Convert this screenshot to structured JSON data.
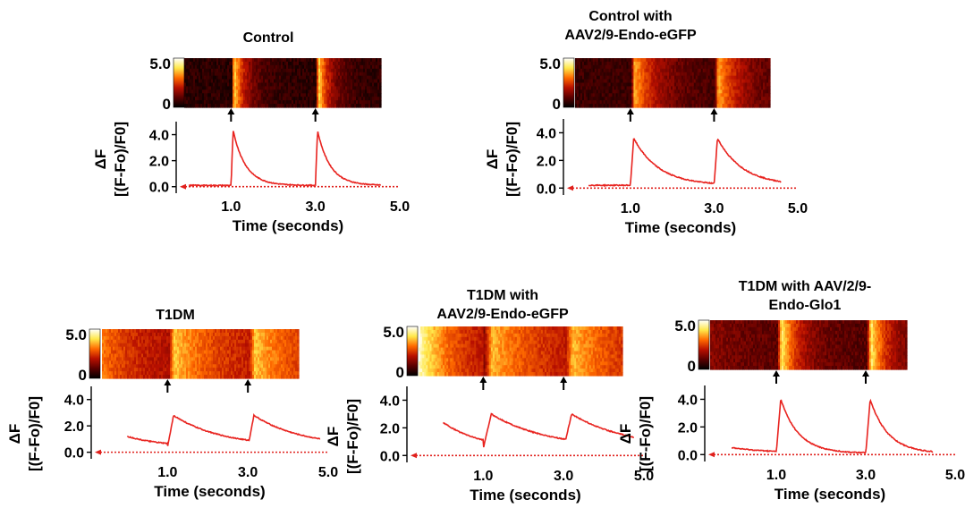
{
  "colors": {
    "trace": "#e8231f",
    "baseline": "#e0201c",
    "axis": "#000000"
  },
  "heatmap_colorscale": [
    "#000000",
    "#5a0000",
    "#b81000",
    "#ff6a00",
    "#ffe84a",
    "#ffffff"
  ],
  "chart_data": [
    {
      "id": "control",
      "type": "line",
      "title_lines": [
        "Control"
      ],
      "xlabel": "Time (seconds)",
      "ylabel_line1": "ΔF",
      "ylabel_line2": "[(F-Fo)/F0]",
      "xlim": [
        -0.3,
        5.0
      ],
      "ylim": [
        -0.5,
        5.0
      ],
      "xticks": [
        1.0,
        3.0,
        5.0
      ],
      "xtick_labels": [
        "1.0",
        "3.0",
        "5.0"
      ],
      "yticks": [
        0,
        2,
        4
      ],
      "ytick_labels": [
        "0.0",
        "2.0",
        "4.0"
      ],
      "colorbar_labels": [
        "5.0",
        "0"
      ],
      "stimulus_times": [
        1.0,
        3.0
      ],
      "heatmap_background": 0.15,
      "baseline": 0.0,
      "transient": {
        "rest": 0.1,
        "peak": 4.3,
        "rise": 0.05,
        "decay_tau": 0.3,
        "start": 0.0,
        "end": 4.55
      }
    },
    {
      "id": "control-eGFP",
      "type": "line",
      "title_lines": [
        "Control with",
        "AAV2/9-Endo-eGFP"
      ],
      "xlabel": "Time (seconds)",
      "ylabel_line1": "ΔF",
      "ylabel_line2": "[(F-Fo)/F0]",
      "xlim": [
        -0.6,
        5.0
      ],
      "ylim": [
        -0.5,
        5.0
      ],
      "xticks": [
        1.0,
        3.0,
        5.0
      ],
      "xtick_labels": [
        "1.0",
        "3.0",
        "5.0"
      ],
      "yticks": [
        0,
        2,
        4
      ],
      "ytick_labels": [
        "0.0",
        "2.0",
        "4.0"
      ],
      "colorbar_labels": [
        "5.0",
        "0"
      ],
      "stimulus_times": [
        1.0,
        3.0
      ],
      "heatmap_background": 0.18,
      "baseline": 0.0,
      "transient": {
        "rest": 0.2,
        "peak": 3.6,
        "rise": 0.08,
        "decay_tau": 0.6,
        "start": 0.0,
        "end": 4.6
      }
    },
    {
      "id": "t1dm",
      "type": "line",
      "title_lines": [
        "T1DM"
      ],
      "xlabel": "Time (seconds)",
      "ylabel_line1": "ΔF",
      "ylabel_line2": "[(F-Fo)/F0]",
      "xlim": [
        -0.9,
        5.0
      ],
      "ylim": [
        -0.5,
        5.0
      ],
      "xticks": [
        1.0,
        3.0,
        5.0
      ],
      "xtick_labels": [
        "1.0",
        "3.0",
        "5.0"
      ],
      "yticks": [
        0,
        2,
        4
      ],
      "ytick_labels": [
        "0.0",
        "2.0",
        "4.0"
      ],
      "colorbar_labels": [
        "5.0",
        "0"
      ],
      "stimulus_times": [
        1.0,
        3.0
      ],
      "heatmap_background": 0.5,
      "baseline": 0.0,
      "transient": {
        "rest": 0.4,
        "peak": 2.8,
        "rise": 0.15,
        "decay_tau": 1.2,
        "start": 0.0,
        "end": 4.8,
        "start_value": 1.2
      }
    },
    {
      "id": "t1dm-eGFP",
      "type": "line",
      "title_lines": [
        "T1DM with",
        "AAV2/9-Endo-eGFP"
      ],
      "xlabel": "Time (seconds)",
      "ylabel_line1": "ΔF",
      "ylabel_line2": "[(F-Fo)/F0]",
      "xlim": [
        -0.9,
        5.0
      ],
      "ylim": [
        -0.5,
        5.0
      ],
      "xticks": [
        1.0,
        3.0,
        5.0
      ],
      "xtick_labels": [
        "1.0",
        "3.0",
        "5.0"
      ],
      "yticks": [
        0,
        2,
        4
      ],
      "ytick_labels": [
        "0.0",
        "2.0",
        "4.0"
      ],
      "colorbar_labels": [
        "5.0",
        "0"
      ],
      "stimulus_times": [
        1.0,
        3.0
      ],
      "heatmap_background": 0.4,
      "baseline": 0.0,
      "transient": {
        "rest": 0.5,
        "peak": 3.0,
        "rise": 0.2,
        "decay_tau": 1.4,
        "start": 0.0,
        "end": 4.75,
        "start_value": 2.4
      }
    },
    {
      "id": "t1dm-glo1",
      "type": "line",
      "title_lines": [
        "T1DM with AAV/2/9-",
        "Endo-Glo1"
      ],
      "xlabel": "Time (seconds)",
      "ylabel_line1": "ΔF",
      "ylabel_line2": "[(F-Fo)/F0]",
      "xlim": [
        -0.6,
        5.0
      ],
      "ylim": [
        -0.5,
        5.0
      ],
      "xticks": [
        1.0,
        3.0,
        5.0
      ],
      "xtick_labels": [
        "1.0",
        "3.0",
        "5.0"
      ],
      "yticks": [
        0,
        2,
        4
      ],
      "ytick_labels": [
        "0.0",
        "2.0",
        "4.0"
      ],
      "colorbar_labels": [
        "5.0",
        "0"
      ],
      "stimulus_times": [
        1.0,
        3.0
      ],
      "heatmap_background": 0.3,
      "baseline": 0.0,
      "transient": {
        "rest": 0.1,
        "peak": 4.0,
        "rise": 0.1,
        "decay_tau": 0.4,
        "start": 0.0,
        "end": 4.5,
        "start_value": 0.5
      }
    }
  ]
}
